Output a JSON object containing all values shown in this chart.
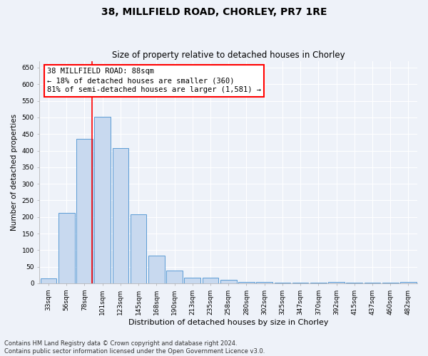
{
  "title": "38, MILLFIELD ROAD, CHORLEY, PR7 1RE",
  "subtitle": "Size of property relative to detached houses in Chorley",
  "xlabel": "Distribution of detached houses by size in Chorley",
  "ylabel": "Number of detached properties",
  "categories": [
    "33sqm",
    "56sqm",
    "78sqm",
    "101sqm",
    "123sqm",
    "145sqm",
    "168sqm",
    "190sqm",
    "213sqm",
    "235sqm",
    "258sqm",
    "280sqm",
    "302sqm",
    "325sqm",
    "347sqm",
    "370sqm",
    "392sqm",
    "415sqm",
    "437sqm",
    "460sqm",
    "482sqm"
  ],
  "values": [
    15,
    213,
    435,
    502,
    407,
    207,
    84,
    38,
    18,
    18,
    11,
    5,
    4,
    1,
    1,
    1,
    5,
    1,
    1,
    1,
    4
  ],
  "bar_color": "#c8d9ef",
  "bar_edge_color": "#5b9bd5",
  "vline_color": "red",
  "vline_x": 2.43,
  "annotation_line1": "38 MILLFIELD ROAD: 88sqm",
  "annotation_line2": "← 18% of detached houses are smaller (360)",
  "annotation_line3": "81% of semi-detached houses are larger (1,581) →",
  "annotation_box_color": "white",
  "annotation_box_edge_color": "red",
  "ylim": [
    0,
    670
  ],
  "yticks": [
    0,
    50,
    100,
    150,
    200,
    250,
    300,
    350,
    400,
    450,
    500,
    550,
    600,
    650
  ],
  "footnote": "Contains HM Land Registry data © Crown copyright and database right 2024.\nContains public sector information licensed under the Open Government Licence v3.0.",
  "background_color": "#eef2f9",
  "grid_color": "white",
  "title_fontsize": 10,
  "subtitle_fontsize": 8.5,
  "xlabel_fontsize": 8,
  "ylabel_fontsize": 7.5,
  "tick_fontsize": 6.5,
  "annotation_fontsize": 7.5,
  "footnote_fontsize": 6
}
